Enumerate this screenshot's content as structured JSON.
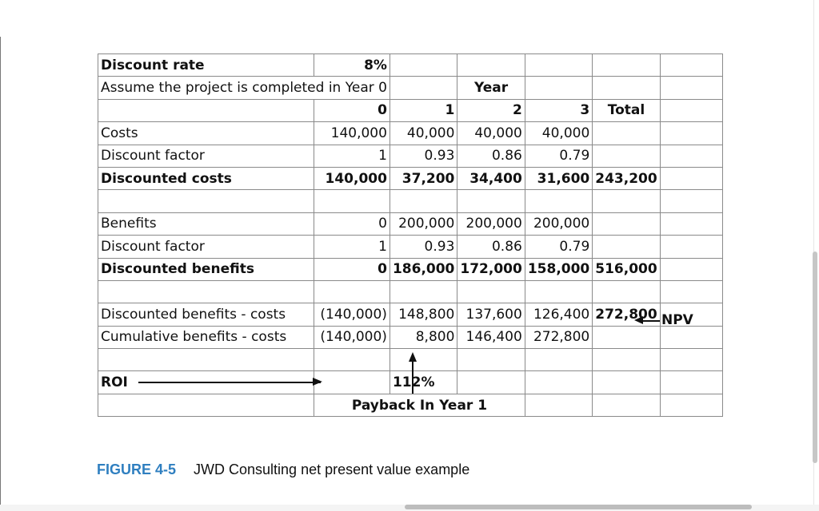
{
  "figure": {
    "number": "FIGURE 4-5",
    "title": "JWD Consulting net present value example",
    "number_color": "#2f7fc0"
  },
  "sheet": {
    "discount_rate_label": "Discount rate",
    "discount_rate_value": "8%",
    "assumption": "Assume the project is completed in Year 0",
    "year_label": "Year",
    "year_headers": [
      "0",
      "1",
      "2",
      "3"
    ],
    "total_label": "Total",
    "costs": {
      "label": "Costs",
      "values": [
        "140,000",
        "40,000",
        "40,000",
        "40,000"
      ]
    },
    "cost_factor": {
      "label": "Discount factor",
      "values": [
        "1",
        "0.93",
        "0.86",
        "0.79"
      ]
    },
    "discounted_costs": {
      "label": "Discounted costs",
      "values": [
        "140,000",
        "37,200",
        "34,400",
        "31,600"
      ],
      "total": "243,200"
    },
    "benefits": {
      "label": "Benefits",
      "values": [
        "0",
        "200,000",
        "200,000",
        "200,000"
      ]
    },
    "benefit_factor": {
      "label": "Discount factor",
      "values": [
        "1",
        "0.93",
        "0.86",
        "0.79"
      ]
    },
    "discounted_benefits": {
      "label": "Discounted benefits",
      "values": [
        "0",
        "186,000",
        "172,000",
        "158,000"
      ],
      "total": "516,000"
    },
    "net": {
      "label": "Discounted benefits - costs",
      "values": [
        "(140,000)",
        "148,800",
        "137,600",
        "126,400"
      ],
      "total": "272,800"
    },
    "cumulative": {
      "label": "Cumulative benefits - costs",
      "values": [
        "(140,000)",
        "8,800",
        "146,400",
        "272,800"
      ]
    },
    "roi_label": "ROI",
    "roi_value": "112%",
    "payback": "Payback In Year 1",
    "npv_label": "NPV"
  }
}
